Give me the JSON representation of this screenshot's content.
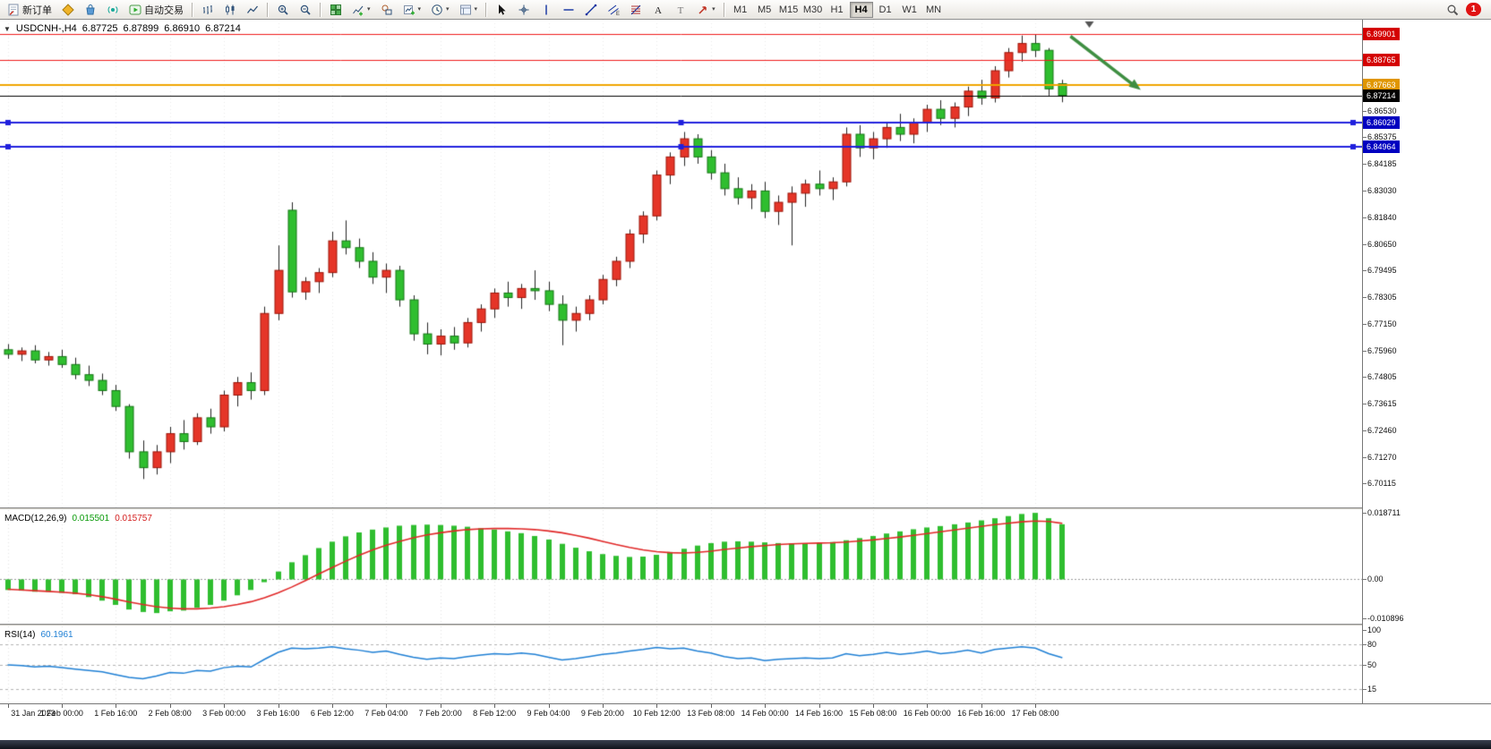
{
  "toolbar": {
    "new_order_label": "新订单",
    "autotrading_label": "自动交易",
    "left_icons": [
      "metaeditor-icon",
      "market-icon",
      "signals-icon"
    ],
    "chart_type_icons": [
      "bar-chart-icon",
      "candlestick-chart-icon",
      "line-chart-icon"
    ],
    "zoom_icons": [
      "zoom-in-icon",
      "zoom-out-icon"
    ],
    "window_icons": [
      "tile-windows-icon",
      "indicators-icon",
      "objects-icon",
      "new-chart-icon",
      "period-icon",
      "template-icon"
    ],
    "draw_icons": [
      "cursor-icon",
      "crosshair-icon",
      "vertical-line-icon",
      "horizontal-line-icon",
      "trendline-icon",
      "channel-icon",
      "fibonacci-icon",
      "text-icon",
      "label-icon",
      "arrows-icon"
    ],
    "timeframes": [
      "M1",
      "M5",
      "M15",
      "M30",
      "H1",
      "H4",
      "D1",
      "W1",
      "MN"
    ],
    "active_timeframe": "H4",
    "notification_count": "1"
  },
  "chart": {
    "info_toggle": "▼",
    "info_symbol": "USDCNH-,H4",
    "open": "6.87725",
    "high": "6.87899",
    "low": "6.86910",
    "close": "6.87214"
  },
  "macd_panel": {
    "label": "MACD(12,26,9)",
    "value": "0.015501",
    "signal": "0.015757",
    "axis": [
      "0.018711",
      "0.00",
      "-0.010896"
    ]
  },
  "rsi_panel": {
    "label": "RSI(14)",
    "value": "60.1961",
    "axis": [
      "100",
      "80",
      "50",
      "15"
    ]
  },
  "chart_data": {
    "type": "candlestick",
    "symbol": "USDCNH-",
    "timeframe": "H4",
    "price_range": [
      6.6905,
      6.9055
    ],
    "price_axis_ticks": [
      "6.86530",
      "6.85375",
      "6.84185",
      "6.83030",
      "6.81840",
      "6.80650",
      "6.79495",
      "6.78305",
      "6.77150",
      "6.75960",
      "6.74805",
      "6.73615",
      "6.72460",
      "6.71270",
      "6.70115"
    ],
    "hlines": [
      {
        "price": 6.89901,
        "label": "6.89901",
        "color": "#ef1a1a",
        "badge": "#d40000",
        "width": 1
      },
      {
        "price": 6.88765,
        "label": "6.88765",
        "color": "#ef1a1a",
        "badge": "#d40000",
        "width": 1
      },
      {
        "price": 6.87663,
        "label": "6.87663",
        "color": "#f0a400",
        "badge": "#e09600",
        "width": 2
      },
      {
        "price": 6.87214,
        "label": "6.87214",
        "color": "#000000",
        "badge": "#000000",
        "width": 1,
        "current": true
      },
      {
        "price": 6.86029,
        "label": "6.86029",
        "color": "#2020dd",
        "badge": "#0000c0",
        "width": 2,
        "handles": true
      },
      {
        "price": 6.84964,
        "label": "6.84964",
        "color": "#2020dd",
        "badge": "#0000c0",
        "width": 2,
        "handles": true
      }
    ],
    "arrow": {
      "i1": 78.6,
      "p1": 6.8982,
      "i2": 83.8,
      "p2": 6.8745,
      "color": "#3e8e41"
    },
    "shift_marker_i": 80,
    "colors": {
      "bull": "#e53528",
      "bull_border": "#9c1408",
      "bear": "#2fbe2f",
      "bear_border": "#157515",
      "wick": "#222222"
    },
    "time_labels": [
      {
        "i": 0,
        "t": "31 Jan 2023"
      },
      {
        "i": 4,
        "t": "1 Feb 00:00"
      },
      {
        "i": 8,
        "t": "1 Feb 16:00"
      },
      {
        "i": 12,
        "t": "2 Feb 08:00"
      },
      {
        "i": 16,
        "t": "3 Feb 00:00"
      },
      {
        "i": 20,
        "t": "3 Feb 16:00"
      },
      {
        "i": 24,
        "t": "6 Feb 12:00"
      },
      {
        "i": 28,
        "t": "7 Feb 04:00"
      },
      {
        "i": 32,
        "t": "7 Feb 20:00"
      },
      {
        "i": 36,
        "t": "8 Feb 12:00"
      },
      {
        "i": 40,
        "t": "9 Feb 04:00"
      },
      {
        "i": 44,
        "t": "9 Feb 20:00"
      },
      {
        "i": 48,
        "t": "10 Feb 12:00"
      },
      {
        "i": 52,
        "t": "13 Feb 08:00"
      },
      {
        "i": 56,
        "t": "14 Feb 00:00"
      },
      {
        "i": 60,
        "t": "14 Feb 16:00"
      },
      {
        "i": 64,
        "t": "15 Feb 08:00"
      },
      {
        "i": 68,
        "t": "16 Feb 00:00"
      },
      {
        "i": 72,
        "t": "16 Feb 16:00"
      },
      {
        "i": 76,
        "t": "17 Feb 08:00"
      }
    ],
    "candles": [
      [
        6.76,
        6.7625,
        6.756,
        6.758
      ],
      [
        6.758,
        6.761,
        6.755,
        6.7595
      ],
      [
        6.7595,
        6.762,
        6.754,
        6.7555
      ],
      [
        6.7555,
        6.759,
        6.753,
        6.757
      ],
      [
        6.757,
        6.76,
        6.752,
        6.7535
      ],
      [
        6.7535,
        6.7565,
        6.747,
        6.749
      ],
      [
        6.749,
        6.753,
        6.744,
        6.7465
      ],
      [
        6.7465,
        6.7495,
        6.74,
        6.742
      ],
      [
        6.742,
        6.7445,
        6.733,
        6.735
      ],
      [
        6.735,
        6.736,
        6.712,
        6.715
      ],
      [
        6.715,
        6.72,
        6.703,
        6.708
      ],
      [
        6.708,
        6.718,
        6.705,
        6.715
      ],
      [
        6.715,
        6.726,
        6.71,
        6.723
      ],
      [
        6.723,
        6.729,
        6.716,
        6.7195
      ],
      [
        6.7195,
        6.732,
        6.718,
        6.73
      ],
      [
        6.73,
        6.734,
        6.723,
        6.726
      ],
      [
        6.726,
        6.742,
        6.724,
        6.74
      ],
      [
        6.74,
        6.748,
        6.735,
        6.7455
      ],
      [
        6.7455,
        6.75,
        6.738,
        6.742
      ],
      [
        6.742,
        6.779,
        6.74,
        6.776
      ],
      [
        6.776,
        6.806,
        6.773,
        6.795
      ],
      [
        6.8215,
        6.825,
        6.783,
        6.7855
      ],
      [
        6.7855,
        6.792,
        6.782,
        6.79
      ],
      [
        6.79,
        6.796,
        6.785,
        6.794
      ],
      [
        6.794,
        6.812,
        6.792,
        6.808
      ],
      [
        6.808,
        6.817,
        6.802,
        6.805
      ],
      [
        6.805,
        6.809,
        6.796,
        6.799
      ],
      [
        6.799,
        6.803,
        6.789,
        6.792
      ],
      [
        6.792,
        6.798,
        6.785,
        6.795
      ],
      [
        6.795,
        6.797,
        6.779,
        6.782
      ],
      [
        6.782,
        6.784,
        6.764,
        6.767
      ],
      [
        6.767,
        6.772,
        6.758,
        6.7625
      ],
      [
        6.7625,
        6.769,
        6.7575,
        6.766
      ],
      [
        6.766,
        6.77,
        6.76,
        6.763
      ],
      [
        6.763,
        6.774,
        6.761,
        6.772
      ],
      [
        6.772,
        6.78,
        6.768,
        6.778
      ],
      [
        6.778,
        6.787,
        6.774,
        6.785
      ],
      [
        6.785,
        6.79,
        6.779,
        6.783
      ],
      [
        6.783,
        6.789,
        6.778,
        6.787
      ],
      [
        6.787,
        6.795,
        6.782,
        6.786
      ],
      [
        6.786,
        6.79,
        6.777,
        6.78
      ],
      [
        6.78,
        6.784,
        6.762,
        6.773
      ],
      [
        6.773,
        6.779,
        6.768,
        6.776
      ],
      [
        6.776,
        6.784,
        6.773,
        6.782
      ],
      [
        6.782,
        6.793,
        6.78,
        6.791
      ],
      [
        6.791,
        6.801,
        6.788,
        6.799
      ],
      [
        6.799,
        6.813,
        6.796,
        6.811
      ],
      [
        6.811,
        6.821,
        6.807,
        6.819
      ],
      [
        6.819,
        6.839,
        6.817,
        6.837
      ],
      [
        6.837,
        6.847,
        6.833,
        6.845
      ],
      [
        6.845,
        6.856,
        6.841,
        6.853
      ],
      [
        6.853,
        6.855,
        6.842,
        6.845
      ],
      [
        6.845,
        6.848,
        6.835,
        6.838
      ],
      [
        6.838,
        6.842,
        6.828,
        6.831
      ],
      [
        6.831,
        6.836,
        6.824,
        6.827
      ],
      [
        6.827,
        6.833,
        6.822,
        6.83
      ],
      [
        6.83,
        6.834,
        6.818,
        6.821
      ],
      [
        6.821,
        6.828,
        6.815,
        6.825
      ],
      [
        6.825,
        6.832,
        6.806,
        6.829
      ],
      [
        6.829,
        6.835,
        6.823,
        6.833
      ],
      [
        6.833,
        6.839,
        6.828,
        6.831
      ],
      [
        6.831,
        6.836,
        6.826,
        6.834
      ],
      [
        6.834,
        6.858,
        6.832,
        6.855
      ],
      [
        6.855,
        6.859,
        6.845,
        6.849
      ],
      [
        6.849,
        6.856,
        6.844,
        6.853
      ],
      [
        6.853,
        6.86,
        6.849,
        6.858
      ],
      [
        6.858,
        6.864,
        6.852,
        6.855
      ],
      [
        6.855,
        6.862,
        6.851,
        6.86
      ],
      [
        6.86,
        6.868,
        6.856,
        6.866
      ],
      [
        6.866,
        6.87,
        6.859,
        6.862
      ],
      [
        6.862,
        6.869,
        6.858,
        6.867
      ],
      [
        6.867,
        6.876,
        6.863,
        6.874
      ],
      [
        6.874,
        6.879,
        6.868,
        6.871
      ],
      [
        6.871,
        6.885,
        6.869,
        6.883
      ],
      [
        6.883,
        6.893,
        6.88,
        6.891
      ],
      [
        6.891,
        6.8985,
        6.887,
        6.895
      ],
      [
        6.895,
        6.899,
        6.889,
        6.892
      ],
      [
        6.892,
        6.893,
        6.872,
        6.875
      ],
      [
        6.87725,
        6.87899,
        6.8691,
        6.87214
      ]
    ],
    "macd": {
      "range": [
        -0.0125,
        0.0195
      ],
      "hist_color": "#2fbe2f",
      "signal_color": "#e02828",
      "histogram": [
        -0.003,
        -0.0032,
        -0.0035,
        -0.0035,
        -0.0038,
        -0.0042,
        -0.005,
        -0.006,
        -0.0072,
        -0.0085,
        -0.0092,
        -0.0095,
        -0.009,
        -0.0088,
        -0.008,
        -0.0072,
        -0.006,
        -0.0045,
        -0.003,
        -0.0008,
        0.0022,
        0.0048,
        0.0068,
        0.0088,
        0.0106,
        0.0121,
        0.0132,
        0.014,
        0.0146,
        0.0151,
        0.0153,
        0.0154,
        0.0153,
        0.0151,
        0.0148,
        0.0144,
        0.014,
        0.0135,
        0.013,
        0.0122,
        0.0112,
        0.01,
        0.0089,
        0.0079,
        0.0071,
        0.0066,
        0.0063,
        0.0064,
        0.0069,
        0.0077,
        0.0086,
        0.0095,
        0.0102,
        0.0106,
        0.0107,
        0.0106,
        0.0104,
        0.0102,
        0.0101,
        0.0101,
        0.0102,
        0.0105,
        0.011,
        0.0116,
        0.0122,
        0.0129,
        0.0135,
        0.0141,
        0.0146,
        0.015,
        0.0155,
        0.016,
        0.0166,
        0.0172,
        0.0178,
        0.0184,
        0.018711,
        0.0172,
        0.015501
      ],
      "signal": [
        -0.0028,
        -0.003,
        -0.0032,
        -0.0034,
        -0.0036,
        -0.0039,
        -0.0043,
        -0.0049,
        -0.0056,
        -0.0064,
        -0.0071,
        -0.0077,
        -0.0081,
        -0.0083,
        -0.0083,
        -0.0081,
        -0.0077,
        -0.0071,
        -0.0063,
        -0.0052,
        -0.0038,
        -0.0022,
        -0.0004,
        0.0015,
        0.0033,
        0.0051,
        0.0068,
        0.0083,
        0.0096,
        0.0107,
        0.0117,
        0.0125,
        0.0131,
        0.0136,
        0.014,
        0.0142,
        0.0143,
        0.0143,
        0.0142,
        0.014,
        0.0136,
        0.0131,
        0.0124,
        0.0116,
        0.0107,
        0.0098,
        0.009,
        0.0083,
        0.0078,
        0.0075,
        0.0074,
        0.0076,
        0.0079,
        0.0084,
        0.0088,
        0.0092,
        0.0095,
        0.0098,
        0.01,
        0.0101,
        0.0102,
        0.0103,
        0.0105,
        0.0108,
        0.0111,
        0.0115,
        0.0119,
        0.0124,
        0.0129,
        0.0134,
        0.0139,
        0.0144,
        0.0149,
        0.0154,
        0.0158,
        0.0162,
        0.0164,
        0.0163,
        0.015757
      ]
    },
    "rsi": {
      "range": [
        0,
        100
      ],
      "levels": [
        80,
        50,
        15
      ],
      "color": "#1e7fd4",
      "values": [
        50,
        49,
        47,
        48,
        46,
        44,
        42,
        40,
        36,
        32,
        30,
        34,
        39,
        38,
        42,
        41,
        46,
        48,
        47,
        58,
        68,
        74,
        73,
        74,
        76,
        73,
        71,
        68,
        70,
        65,
        61,
        58,
        60,
        59,
        62,
        64,
        66,
        65,
        67,
        65,
        61,
        57,
        59,
        62,
        65,
        67,
        70,
        72,
        75,
        73,
        74,
        70,
        67,
        62,
        59,
        60,
        56,
        58,
        59,
        60,
        59,
        60,
        66,
        63,
        65,
        68,
        65,
        67,
        70,
        66,
        68,
        71,
        67,
        72,
        74,
        76,
        74,
        66,
        60.1961
      ]
    }
  }
}
